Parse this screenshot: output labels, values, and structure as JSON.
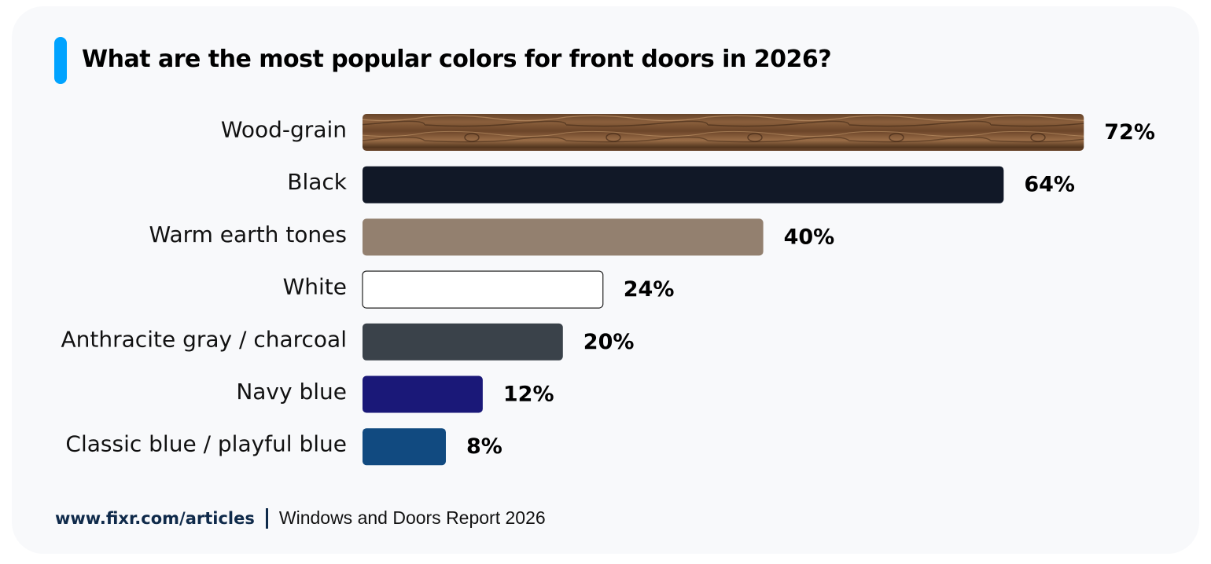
{
  "chart_data": {
    "type": "bar",
    "orientation": "horizontal",
    "title": "What are the most popular colors for front doors in 2026?",
    "categories": [
      "Wood-grain",
      "Black",
      "Warm earth tones",
      "White",
      "Anthracite gray / charcoal",
      "Navy blue",
      "Classic blue / playful blue"
    ],
    "values": [
      72,
      64,
      40,
      24,
      20,
      12,
      8
    ],
    "value_labels": [
      "72%",
      "64%",
      "40%",
      "24%",
      "20%",
      "12%",
      "8%"
    ],
    "bar_colors": [
      "wood-texture",
      "#111827",
      "#93806f",
      "#ffffff",
      "#3a424a",
      "#1a1878",
      "#114a80"
    ],
    "grid": false,
    "xlabel": "",
    "ylabel": ""
  },
  "accent_color": "#00a3ff",
  "footer": {
    "source": "www.fixr.com/articles",
    "report": "Windows and Doors Report 2026"
  }
}
